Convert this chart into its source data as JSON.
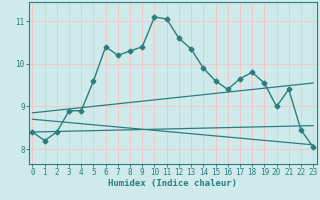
{
  "xlabel": "Humidex (Indice chaleur)",
  "bg_color": "#ceeaea",
  "line_color": "#2d7d7d",
  "grid_color": "#f0c8c8",
  "x_ticks": [
    0,
    1,
    2,
    3,
    4,
    5,
    6,
    7,
    8,
    9,
    10,
    11,
    12,
    13,
    14,
    15,
    16,
    17,
    18,
    19,
    20,
    21,
    22,
    23
  ],
  "y_ticks": [
    8,
    9,
    10,
    11
  ],
  "ylim": [
    7.65,
    11.45
  ],
  "xlim": [
    -0.3,
    23.3
  ],
  "line1_x": [
    0,
    1,
    2,
    3,
    4,
    5,
    6,
    7,
    8,
    9,
    10,
    11,
    12,
    13,
    14,
    15,
    16,
    17,
    18,
    19,
    20,
    21,
    22,
    23
  ],
  "line1_y": [
    8.4,
    8.2,
    8.4,
    8.9,
    8.9,
    9.6,
    10.4,
    10.2,
    10.3,
    10.4,
    11.1,
    11.05,
    10.6,
    10.35,
    9.9,
    9.6,
    9.4,
    9.65,
    9.8,
    9.55,
    9.0,
    9.4,
    8.45,
    8.05
  ],
  "line2_x": [
    0,
    23
  ],
  "line2_y": [
    8.85,
    9.55
  ],
  "line3_x": [
    0,
    23
  ],
  "line3_y": [
    8.7,
    8.1
  ],
  "line4_x": [
    0,
    23
  ],
  "line4_y": [
    8.4,
    8.55
  ]
}
